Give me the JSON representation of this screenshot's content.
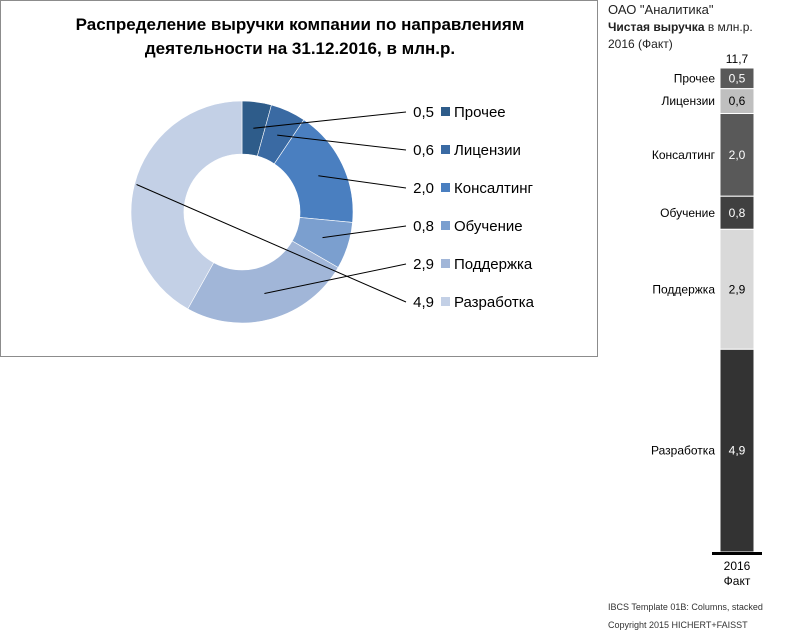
{
  "donut": {
    "title_line1": "Распределение выручки компании по направлениям",
    "title_line2": "деятельности на 31.12.2016,  в млн.р."
  },
  "ibcs": {
    "company": "ОАО \"Аналитика\"",
    "measure_bold": "Чистая выручка",
    "measure_rest": " в млн.р.",
    "scenario": "2016 (Факт)",
    "total_label": "11,7",
    "period": "2016",
    "period_type": "Факт",
    "footer_template": "IBCS Template 01B: Columns, stacked",
    "footer_copyright": "Copyright 2015 HICHERT+FAISST"
  },
  "chart_data": [
    {
      "type": "pie",
      "style": "donut",
      "title": "Распределение выручки компании по направлениям деятельности на 31.12.2016,  в млн.р.",
      "legend_position": "right",
      "categories": [
        "Прочее",
        "Лицензии",
        "Консалтинг",
        "Обучение",
        "Поддержка",
        "Разработка"
      ],
      "values": [
        0.5,
        0.6,
        2.0,
        0.8,
        2.9,
        4.9
      ],
      "value_labels": [
        "0,5",
        "0,6",
        "2,0",
        "0,8",
        "2,9",
        "4,9"
      ],
      "colors": [
        "#2e5c8a",
        "#3a6aa3",
        "#4a7fc0",
        "#7b9fcf",
        "#a1b6d8",
        "#c3d0e6"
      ]
    },
    {
      "type": "bar",
      "style": "stacked-column",
      "categories": [
        "2016 Факт"
      ],
      "series": [
        {
          "name": "Прочее",
          "values": [
            0.5
          ],
          "label": "0,5",
          "color": "#595959"
        },
        {
          "name": "Лицензии",
          "values": [
            0.6
          ],
          "label": "0,6",
          "color": "#bfbfbf"
        },
        {
          "name": "Консалтинг",
          "values": [
            2.0
          ],
          "label": "2,0",
          "color": "#595959"
        },
        {
          "name": "Обучение",
          "values": [
            0.8
          ],
          "label": "0,8",
          "color": "#404040"
        },
        {
          "name": "Поддержка",
          "values": [
            2.9
          ],
          "label": "2,9",
          "color": "#d9d9d9"
        },
        {
          "name": "Разработка",
          "values": [
            4.9
          ],
          "label": "4,9",
          "color": "#333333"
        }
      ],
      "total": 11.7,
      "total_label": "11,7"
    }
  ]
}
